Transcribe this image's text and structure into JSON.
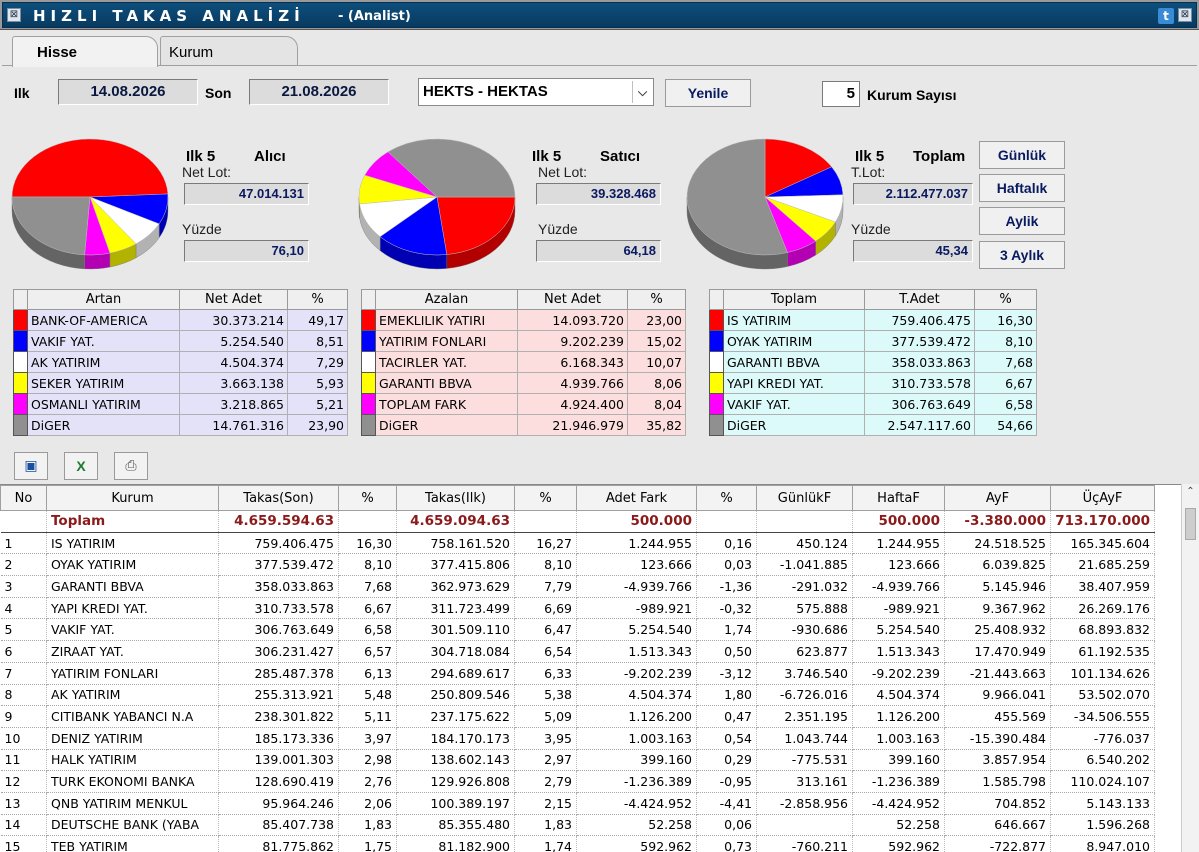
{
  "window": {
    "title": "HIZLI TAKAS ANALİZİ",
    "subtitle": "- (Analist)",
    "close_glyph": "⊠",
    "menu_glyph": "⊠"
  },
  "tabs": [
    {
      "label": "Hisse",
      "active": true
    },
    {
      "label": "Kurum",
      "active": false
    }
  ],
  "filters": {
    "ilk_label": "Ilk",
    "ilk_date": "14.08.2026",
    "son_label": "Son",
    "son_date": "21.08.2026",
    "stock_selected": "HEKTS - HEKTAS",
    "refresh_label": "Yenile",
    "kurum_count": "5",
    "kurum_count_label": "Kurum Sayısı"
  },
  "summaries": {
    "buyer": {
      "ilk": "Ilk 5",
      "type": "Alıcı",
      "net_label": "Net Lot:",
      "net_value": "47.014.131",
      "pct_label": "Yüzde",
      "pct_value": "76,10"
    },
    "seller": {
      "ilk": "Ilk 5",
      "type": "Satıcı",
      "net_label": "Net Lot:",
      "net_value": "39.328.468",
      "pct_label": "Yüzde",
      "pct_value": "64,18"
    },
    "total": {
      "ilk": "Ilk 5",
      "type": "Toplam",
      "net_label": "T.Lot:",
      "net_value": "2.112.477.037",
      "pct_label": "Yüzde",
      "pct_value": "45,34"
    }
  },
  "period_buttons": [
    "Günlük",
    "Haftalık",
    "Aylik",
    "3 Aylık"
  ],
  "colors": {
    "red": "#ff0000",
    "blue": "#0000ff",
    "white": "#ffffff",
    "yellow": "#ffff00",
    "magenta": "#ff00ff",
    "gray": "#909090",
    "total_row": "#8b1a1a"
  },
  "artan": {
    "headers": [
      "Artan",
      "Net Adet",
      "%"
    ],
    "rows": [
      {
        "color": "#ff0000",
        "name": "BANK-OF-AMERICA",
        "value": "30.373.214",
        "pct": "49,17"
      },
      {
        "color": "#0000ff",
        "name": "VAKIF YAT.",
        "value": "5.254.540",
        "pct": "8,51"
      },
      {
        "color": "#ffffff",
        "name": "AK YATIRIM",
        "value": "4.504.374",
        "pct": "7,29"
      },
      {
        "color": "#ffff00",
        "name": "SEKER YATIRIM",
        "value": "3.663.138",
        "pct": "5,93"
      },
      {
        "color": "#ff00ff",
        "name": "OSMANLI YATIRIM",
        "value": "3.218.865",
        "pct": "5,21"
      },
      {
        "color": "#909090",
        "name": "DiGER",
        "value": "14.761.316",
        "pct": "23,90"
      }
    ]
  },
  "azalan": {
    "headers": [
      "Azalan",
      "Net Adet",
      "%"
    ],
    "rows": [
      {
        "color": "#ff0000",
        "name": "EMEKLILIK YATIRI",
        "value": "14.093.720",
        "pct": "23,00"
      },
      {
        "color": "#0000ff",
        "name": "YATIRIM FONLARI",
        "value": "9.202.239",
        "pct": "15,02"
      },
      {
        "color": "#ffffff",
        "name": "TACIRLER YAT.",
        "value": "6.168.343",
        "pct": "10,07"
      },
      {
        "color": "#ffff00",
        "name": "GARANTI BBVA",
        "value": "4.939.766",
        "pct": "8,06"
      },
      {
        "color": "#ff00ff",
        "name": "TOPLAM FARK",
        "value": "4.924.400",
        "pct": "8,04"
      },
      {
        "color": "#909090",
        "name": "DiGER",
        "value": "21.946.979",
        "pct": "35,82"
      }
    ]
  },
  "toplam": {
    "headers": [
      "Toplam",
      "T.Adet",
      "%"
    ],
    "rows": [
      {
        "color": "#ff0000",
        "name": "IS YATIRIM",
        "value": "759.406.475",
        "pct": "16,30"
      },
      {
        "color": "#0000ff",
        "name": "OYAK YATIRIM",
        "value": "377.539.472",
        "pct": "8,10"
      },
      {
        "color": "#ffffff",
        "name": "GARANTI BBVA",
        "value": "358.033.863",
        "pct": "7,68"
      },
      {
        "color": "#ffff00",
        "name": "YAPI KREDI YAT.",
        "value": "310.733.578",
        "pct": "6,67"
      },
      {
        "color": "#ff00ff",
        "name": "VAKIF YAT.",
        "value": "306.763.649",
        "pct": "6,58"
      },
      {
        "color": "#909090",
        "name": "DiGER",
        "value": "2.547.117.60",
        "pct": "54,66"
      }
    ]
  },
  "toolbar": [
    {
      "name": "save-icon",
      "glyph": "💾"
    },
    {
      "name": "excel-icon",
      "glyph": "X"
    },
    {
      "name": "print-icon",
      "glyph": "🖶"
    }
  ],
  "grid": {
    "headers": [
      "No",
      "Kurum",
      "Takas(Son)",
      "%",
      "Takas(Ilk)",
      "%",
      "Adet Fark",
      "%",
      "GünlükF",
      "HaftaF",
      "AyF",
      "ÜçAyF"
    ],
    "total": [
      "",
      "Toplam",
      "4.659.594.63",
      "",
      "4.659.094.63",
      "",
      "500.000",
      "",
      "",
      "500.000",
      "-3.380.000",
      "713.170.000"
    ],
    "rows": [
      [
        "1",
        "IS YATIRIM",
        "759.406.475",
        "16,30",
        "758.161.520",
        "16,27",
        "1.244.955",
        "0,16",
        "450.124",
        "1.244.955",
        "24.518.525",
        "165.345.604"
      ],
      [
        "2",
        "OYAK YATIRIM",
        "377.539.472",
        "8,10",
        "377.415.806",
        "8,10",
        "123.666",
        "0,03",
        "-1.041.885",
        "123.666",
        "6.039.825",
        "21.685.259"
      ],
      [
        "3",
        "GARANTI BBVA",
        "358.033.863",
        "7,68",
        "362.973.629",
        "7,79",
        "-4.939.766",
        "-1,36",
        "-291.032",
        "-4.939.766",
        "5.145.946",
        "38.407.959"
      ],
      [
        "4",
        "YAPI KREDI YAT.",
        "310.733.578",
        "6,67",
        "311.723.499",
        "6,69",
        "-989.921",
        "-0,32",
        "575.888",
        "-989.921",
        "9.367.962",
        "26.269.176"
      ],
      [
        "5",
        "VAKIF YAT.",
        "306.763.649",
        "6,58",
        "301.509.110",
        "6,47",
        "5.254.540",
        "1,74",
        "-930.686",
        "5.254.540",
        "25.408.932",
        "68.893.832"
      ],
      [
        "6",
        "ZIRAAT YAT.",
        "306.231.427",
        "6,57",
        "304.718.084",
        "6,54",
        "1.513.343",
        "0,50",
        "623.877",
        "1.513.343",
        "17.470.949",
        "61.192.535"
      ],
      [
        "7",
        "YATIRIM FONLARI",
        "285.487.378",
        "6,13",
        "294.689.617",
        "6,33",
        "-9.202.239",
        "-3,12",
        "3.746.540",
        "-9.202.239",
        "-21.443.663",
        "101.134.626"
      ],
      [
        "8",
        "AK YATIRIM",
        "255.313.921",
        "5,48",
        "250.809.546",
        "5,38",
        "4.504.374",
        "1,80",
        "-6.726.016",
        "4.504.374",
        "9.966.041",
        "53.502.070"
      ],
      [
        "9",
        "CITIBANK YABANCI N.A",
        "238.301.822",
        "5,11",
        "237.175.622",
        "5,09",
        "1.126.200",
        "0,47",
        "2.351.195",
        "1.126.200",
        "455.569",
        "-34.506.555"
      ],
      [
        "10",
        "DENIZ YATIRIM",
        "185.173.336",
        "3,97",
        "184.170.173",
        "3,95",
        "1.003.163",
        "0,54",
        "1.043.744",
        "1.003.163",
        "-15.390.484",
        "-776.037"
      ],
      [
        "11",
        "HALK YATIRIM",
        "139.001.303",
        "2,98",
        "138.602.143",
        "2,97",
        "399.160",
        "0,29",
        "-775.531",
        "399.160",
        "3.857.954",
        "6.540.202"
      ],
      [
        "12",
        "TURK EKONOMI BANKA",
        "128.690.419",
        "2,76",
        "129.926.808",
        "2,79",
        "-1.236.389",
        "-0,95",
        "313.161",
        "-1.236.389",
        "1.585.798",
        "110.024.107"
      ],
      [
        "13",
        "QNB YATIRIM MENKUL",
        "95.964.246",
        "2,06",
        "100.389.197",
        "2,15",
        "-4.424.952",
        "-4,41",
        "-2.858.956",
        "-4.424.952",
        "704.852",
        "5.143.133"
      ],
      [
        "14",
        "DEUTSCHE BANK (YABA",
        "85.407.738",
        "1,83",
        "85.355.480",
        "1,83",
        "52.258",
        "0,06",
        "",
        "52.258",
        "646.667",
        "1.596.268"
      ],
      [
        "15",
        "TEB YATIRIM",
        "81.775.862",
        "1,75",
        "81.182.900",
        "1,74",
        "592.962",
        "0,73",
        "-760.211",
        "592.962",
        "-722.877",
        "8.947.010"
      ]
    ]
  },
  "pies": {
    "buyer": [
      49.17,
      8.51,
      7.29,
      5.93,
      5.21,
      23.9
    ],
    "seller": [
      23.0,
      15.02,
      10.07,
      8.06,
      8.04,
      35.82
    ],
    "total": [
      16.3,
      8.1,
      7.68,
      6.67,
      6.58,
      54.66
    ]
  }
}
